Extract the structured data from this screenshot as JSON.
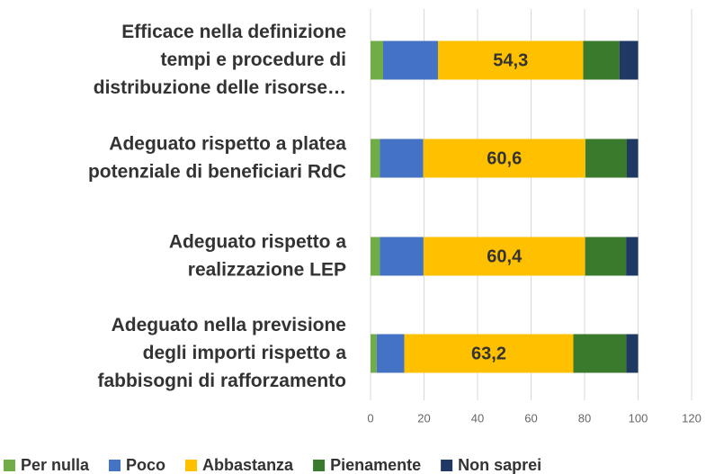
{
  "chart_data": {
    "type": "stacked-barh",
    "categories": [
      "Efficace nella definizione\ntempi e procedure di\ndistribuzione delle risorse…",
      "Adeguato rispetto a platea\npotenziale di beneficiari RdC",
      "Adeguato rispetto a\nrealizzazione LEP",
      "Adeguato nella previsione\ndegli importi rispetto a\nfabbisogni di rafforzamento"
    ],
    "series": [
      {
        "name": "Per nulla",
        "color": "#70ad47",
        "values": [
          4.7,
          3.5,
          3.5,
          2.3
        ]
      },
      {
        "name": "Poco",
        "color": "#4472c4",
        "values": [
          20.5,
          16.2,
          16.3,
          10.3
        ]
      },
      {
        "name": "Abbastanza",
        "color": "#ffc000",
        "values": [
          54.3,
          60.6,
          60.4,
          63.2
        ],
        "value_labels": [
          "54,3",
          "60,6",
          "60,4",
          "63,2"
        ]
      },
      {
        "name": "Pienamente",
        "color": "#3a7a2c",
        "values": [
          13.5,
          15.5,
          15.3,
          19.8
        ]
      },
      {
        "name": "Non saprei",
        "color": "#203864",
        "values": [
          7.0,
          4.2,
          4.5,
          4.4
        ]
      }
    ],
    "xlim": [
      0,
      120
    ],
    "xticks": [
      0,
      20,
      40,
      60,
      80,
      100,
      120
    ],
    "grid": true,
    "legend": "bottom"
  }
}
